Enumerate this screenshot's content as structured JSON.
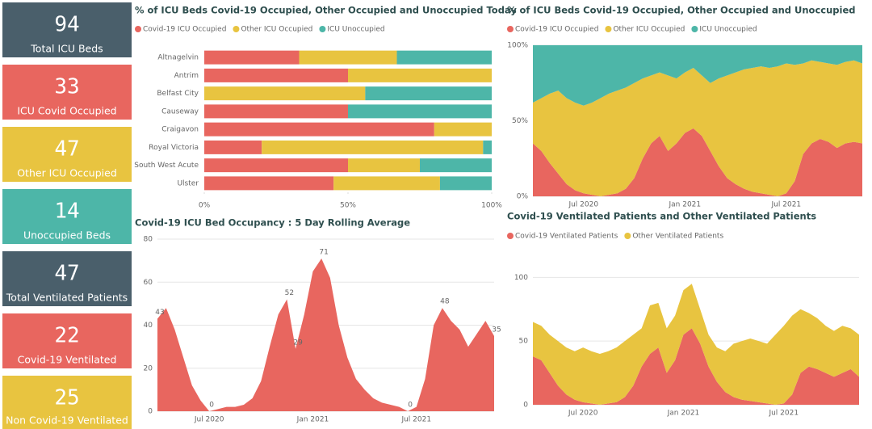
{
  "cards": [
    {
      "value": 94,
      "label": "Total ICU Beds",
      "color": "#4a5f6b"
    },
    {
      "value": 33,
      "label": "ICU Covid Occupied",
      "color": "#e8665f"
    },
    {
      "value": 47,
      "label": "Other ICU Occupied",
      "color": "#e8c440"
    },
    {
      "value": 14,
      "label": "Unoccupied Beds",
      "color": "#4db6a8"
    },
    {
      "value": 47,
      "label": "Total Ventilated Patients",
      "color": "#4a5f6b"
    },
    {
      "value": 22,
      "label": "Covid-19 Ventilated",
      "color": "#e8665f"
    },
    {
      "value": 25,
      "label": "Non Covid-19 Ventilated",
      "color": "#e8c440"
    }
  ],
  "chart_data": [
    {
      "type": "hbar",
      "title": "% of ICU Beds Covid-19 Occupied, Other Occupied and Unoccupied Today",
      "categories": [
        "Altnagelvin",
        "Antrim",
        "Belfast City",
        "Causeway",
        "Craigavon",
        "Royal Victoria",
        "South West Acute",
        "Ulster"
      ],
      "series": [
        {
          "name": "Covid-19 ICU Occupied",
          "color": "#e8665f",
          "values": [
            33,
            50,
            0,
            50,
            80,
            20,
            50,
            45
          ]
        },
        {
          "name": "Other ICU Occupied",
          "color": "#e8c440",
          "values": [
            34,
            50,
            56,
            0,
            20,
            77,
            25,
            37
          ]
        },
        {
          "name": "ICU Unoccupied",
          "color": "#4db6a8",
          "values": [
            33,
            0,
            44,
            50,
            0,
            3,
            25,
            18
          ]
        }
      ],
      "xlim": [
        0,
        100
      ],
      "xticks": [
        {
          "value": 0,
          "label": "0%"
        },
        {
          "value": 50,
          "label": "50%"
        },
        {
          "value": 100,
          "label": "100%"
        }
      ],
      "stacked": true
    },
    {
      "type": "area",
      "title": "Covid-19 ICU Bed Occupancy : 5 Day Rolling Average",
      "categories": [
        null,
        null,
        null,
        null,
        null,
        null,
        "Jul 2020",
        null,
        null,
        null,
        null,
        null,
        null,
        null,
        null,
        null,
        null,
        null,
        "Jan 2021",
        null,
        null,
        null,
        null,
        null,
        null,
        null,
        null,
        null,
        null,
        null,
        "Jul 2021",
        null,
        null,
        null,
        null,
        null,
        null,
        null,
        null,
        null
      ],
      "series": [
        {
          "name": "Covid-19 ICU Occupied",
          "color": "#e8665f",
          "values": [
            43,
            48,
            38,
            25,
            12,
            5,
            0,
            1,
            2,
            2,
            3,
            6,
            14,
            30,
            45,
            52,
            29,
            45,
            65,
            71,
            62,
            40,
            25,
            15,
            10,
            6,
            4,
            3,
            2,
            0,
            2,
            15,
            40,
            48,
            42,
            38,
            30,
            36,
            42,
            35
          ],
          "value_labels": [
            "43",
            null,
            null,
            null,
            null,
            null,
            "0",
            null,
            null,
            null,
            null,
            null,
            null,
            null,
            null,
            "52",
            "29",
            null,
            null,
            "71",
            null,
            null,
            null,
            null,
            null,
            null,
            null,
            null,
            null,
            "0",
            null,
            null,
            null,
            "48",
            null,
            null,
            null,
            null,
            null,
            "35"
          ]
        }
      ],
      "ylim": [
        0,
        80
      ],
      "yticks": [
        0,
        20,
        40,
        60,
        80
      ]
    },
    {
      "type": "area",
      "title": "% of ICU Beds Covid-19 Occupied, Other Occupied and Unoccupied",
      "stacked": true,
      "categories": [
        null,
        null,
        null,
        null,
        null,
        null,
        "Jul 2020",
        null,
        null,
        null,
        null,
        null,
        null,
        null,
        null,
        null,
        null,
        null,
        "Jan 2021",
        null,
        null,
        null,
        null,
        null,
        null,
        null,
        null,
        null,
        null,
        null,
        "Jul 2021",
        null,
        null,
        null,
        null,
        null,
        null,
        null,
        null,
        null
      ],
      "series": [
        {
          "name": "Covid-19 ICU Occupied",
          "color": "#e8665f",
          "values": [
            35,
            30,
            22,
            15,
            8,
            4,
            2,
            1,
            0,
            1,
            2,
            5,
            12,
            25,
            35,
            40,
            30,
            35,
            42,
            45,
            40,
            30,
            20,
            12,
            8,
            5,
            3,
            2,
            1,
            0,
            2,
            10,
            28,
            35,
            38,
            36,
            32,
            35,
            36,
            35
          ]
        },
        {
          "name": "Other ICU Occupied",
          "color": "#e8c440",
          "values": [
            27,
            35,
            46,
            55,
            57,
            58,
            58,
            61,
            65,
            67,
            68,
            67,
            63,
            53,
            45,
            42,
            50,
            43,
            40,
            40,
            40,
            45,
            58,
            68,
            74,
            79,
            82,
            84,
            84,
            86,
            86,
            77,
            60,
            55,
            51,
            52,
            55,
            54,
            54,
            53
          ]
        },
        {
          "name": "ICU Unoccupied",
          "color": "#4db6a8",
          "values": [
            38,
            35,
            32,
            30,
            35,
            38,
            40,
            38,
            35,
            32,
            30,
            28,
            25,
            22,
            20,
            18,
            20,
            22,
            18,
            15,
            20,
            25,
            22,
            20,
            18,
            16,
            15,
            14,
            15,
            14,
            12,
            13,
            12,
            10,
            11,
            12,
            13,
            11,
            10,
            12
          ]
        }
      ],
      "ylim": [
        0,
        100
      ],
      "yticks": [
        {
          "value": 0,
          "label": "0%"
        },
        {
          "value": 50,
          "label": "50%"
        },
        {
          "value": 100,
          "label": "100%"
        }
      ]
    },
    {
      "type": "area",
      "title": "Covid-19 Ventilated Patients and Other Ventilated Patients",
      "stacked": true,
      "categories": [
        null,
        null,
        null,
        null,
        null,
        null,
        "Jul 2020",
        null,
        null,
        null,
        null,
        null,
        null,
        null,
        null,
        null,
        null,
        null,
        "Jan 2021",
        null,
        null,
        null,
        null,
        null,
        null,
        null,
        null,
        null,
        null,
        null,
        "Jul 2021",
        null,
        null,
        null,
        null,
        null,
        null,
        null,
        null,
        null
      ],
      "series": [
        {
          "name": "Covid-19 Ventilated Patients",
          "color": "#e8665f",
          "values": [
            38,
            35,
            25,
            15,
            8,
            4,
            2,
            1,
            0,
            1,
            2,
            6,
            15,
            30,
            40,
            45,
            25,
            35,
            55,
            60,
            48,
            30,
            18,
            10,
            6,
            4,
            3,
            2,
            1,
            0,
            1,
            8,
            25,
            30,
            28,
            25,
            22,
            25,
            28,
            22
          ]
        },
        {
          "name": "Other Ventilated Patients",
          "color": "#e8c440",
          "values": [
            27,
            27,
            30,
            35,
            37,
            38,
            43,
            41,
            40,
            41,
            43,
            44,
            40,
            30,
            38,
            35,
            35,
            35,
            35,
            35,
            27,
            25,
            27,
            32,
            42,
            46,
            49,
            48,
            47,
            55,
            61,
            62,
            50,
            42,
            40,
            37,
            36,
            37,
            32,
            33
          ]
        }
      ],
      "ylim": [
        0,
        118
      ],
      "yticks": [
        0,
        50,
        100
      ]
    }
  ]
}
